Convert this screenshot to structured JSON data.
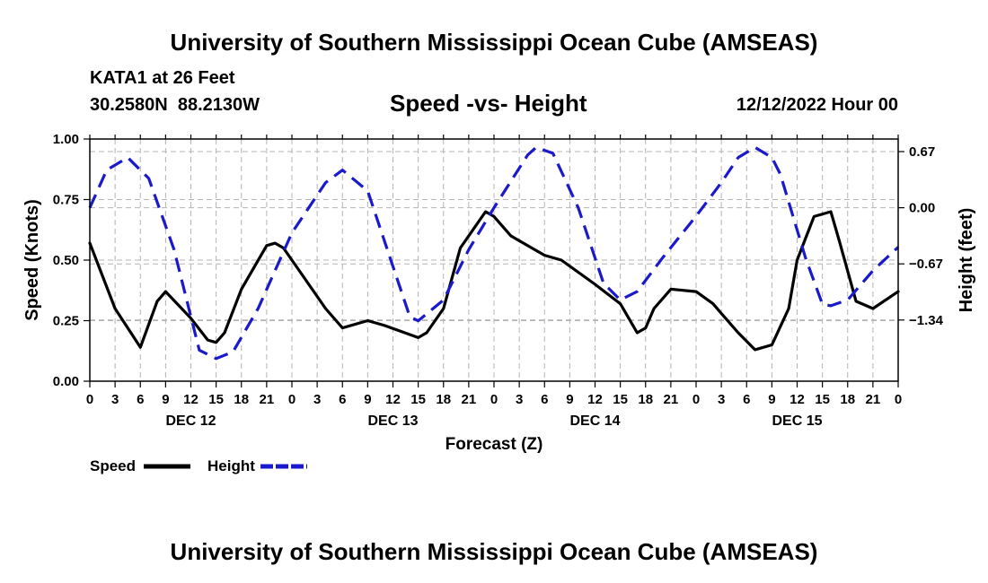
{
  "header": {
    "title": "University of Southern Mississippi Ocean Cube (AMSEAS)",
    "station": "KATA1 at 26 Feet",
    "coords": "30.2580N  88.2130W",
    "chart_title": "Speed -vs- Height",
    "date": "12/12/2022 Hour 00"
  },
  "footer": {
    "title": "University of Southern Mississippi Ocean Cube (AMSEAS)"
  },
  "colors": {
    "speed": "#000000",
    "height": "#1a1acc",
    "grid": "#b4b4b4"
  },
  "chart_data": {
    "type": "line",
    "title": "Speed -vs- Height",
    "xlabel": "Forecast (Z)",
    "ylabel": "Speed (Knots)",
    "y2label": "Height (feet)",
    "xlim": [
      0,
      96
    ],
    "ylim": [
      0,
      1.0
    ],
    "y2lim": [
      -2.07,
      0.82
    ],
    "x_tick_step_hours": 3,
    "x_tick_labels": [
      "0",
      "3",
      "6",
      "9",
      "12",
      "15",
      "18",
      "21",
      "0",
      "3",
      "6",
      "9",
      "12",
      "15",
      "18",
      "21",
      "0",
      "3",
      "6",
      "9",
      "12",
      "15",
      "18",
      "21",
      "0",
      "3",
      "6",
      "9",
      "12",
      "15",
      "18",
      "21",
      "0"
    ],
    "day_labels": [
      {
        "label": "DEC 12",
        "hour": 12
      },
      {
        "label": "DEC 13",
        "hour": 36
      },
      {
        "label": "DEC 14",
        "hour": 60
      },
      {
        "label": "DEC 15",
        "hour": 84
      }
    ],
    "y_ticks": [
      0.0,
      0.25,
      0.5,
      0.75,
      1.0
    ],
    "y_tick_labels": [
      "0.00",
      "0.25",
      "0.50",
      "0.75",
      "1.00"
    ],
    "y2_ticks": [
      0.67,
      0.0,
      -0.67,
      -1.34
    ],
    "y2_tick_labels": [
      "0.67",
      "0.00",
      "−0.67",
      "−1.34"
    ],
    "legend": [
      {
        "label": "Speed",
        "series": "speed"
      },
      {
        "label": "Height",
        "series": "height"
      }
    ],
    "series": [
      {
        "name": "Speed",
        "axis": "left",
        "style": "solid",
        "x": [
          0,
          3,
          6,
          8,
          9,
          12,
          14,
          15,
          16,
          18,
          21,
          22,
          23,
          25,
          28,
          30,
          33,
          35,
          39,
          40,
          42,
          44,
          47,
          48,
          50,
          53,
          54,
          56,
          60,
          63,
          65,
          66,
          67,
          69,
          72,
          74,
          75,
          77,
          79,
          81,
          83,
          84,
          86,
          88,
          89,
          91,
          93,
          96
        ],
        "values": [
          0.57,
          0.3,
          0.14,
          0.33,
          0.37,
          0.26,
          0.17,
          0.16,
          0.2,
          0.38,
          0.56,
          0.57,
          0.55,
          0.45,
          0.3,
          0.22,
          0.25,
          0.23,
          0.18,
          0.2,
          0.3,
          0.55,
          0.7,
          0.68,
          0.6,
          0.54,
          0.52,
          0.5,
          0.4,
          0.32,
          0.2,
          0.22,
          0.3,
          0.38,
          0.37,
          0.32,
          0.28,
          0.2,
          0.13,
          0.15,
          0.3,
          0.5,
          0.68,
          0.7,
          0.58,
          0.33,
          0.3,
          0.37
        ]
      },
      {
        "name": "Height",
        "axis": "right",
        "style": "dashed",
        "x": [
          0,
          2,
          4.5,
          7,
          10,
          13,
          15,
          17,
          20,
          24,
          28,
          30,
          33,
          36,
          38,
          39,
          42,
          45,
          48,
          52,
          53,
          55,
          58,
          61,
          63,
          65,
          68,
          72,
          75,
          77,
          79,
          81,
          82,
          85,
          87,
          88,
          90,
          93,
          96
        ],
        "values": [
          0.0,
          0.45,
          0.6,
          0.35,
          -0.5,
          -1.7,
          -1.8,
          -1.72,
          -1.2,
          -0.3,
          0.3,
          0.45,
          0.2,
          -0.7,
          -1.3,
          -1.35,
          -1.1,
          -0.5,
          0.0,
          0.63,
          0.72,
          0.65,
          0.0,
          -0.9,
          -1.1,
          -1.0,
          -0.6,
          -0.1,
          0.3,
          0.6,
          0.72,
          0.6,
          0.4,
          -0.6,
          -1.15,
          -1.17,
          -1.1,
          -0.75,
          -0.47
        ]
      }
    ]
  }
}
